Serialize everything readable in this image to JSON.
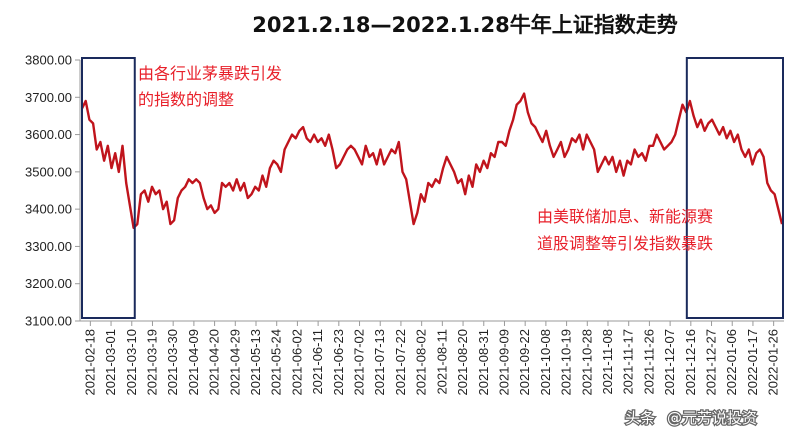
{
  "chart_data": {
    "type": "line",
    "title": "2021.2.18—2022.1.28牛年上证指数走势",
    "xlabel": "",
    "ylabel": "",
    "ylim": [
      3100,
      3800
    ],
    "yticks": [
      "3100.00",
      "3200.00",
      "3300.00",
      "3400.00",
      "3500.00",
      "3600.00",
      "3700.00",
      "3800.00"
    ],
    "xticks": [
      "2021-02-18",
      "2021-03-01",
      "2021-03-10",
      "2021-03-19",
      "2021-03-30",
      "2021-04-09",
      "2021-04-20",
      "2021-04-29",
      "2021-05-13",
      "2021-05-24",
      "2021-06-02",
      "2021-06-11",
      "2021-06-23",
      "2021-07-02",
      "2021-07-13",
      "2021-07-22",
      "2021-08-02",
      "2021-08-11",
      "2021-08-20",
      "2021-08-31",
      "2021-09-09",
      "2021-09-22",
      "2021-10-08",
      "2021-10-19",
      "2021-10-28",
      "2021-11-08",
      "2021-11-17",
      "2021-11-26",
      "2021-12-07",
      "2021-12-16",
      "2021-12-27",
      "2022-01-06",
      "2022-01-17",
      "2022-01-26"
    ],
    "line_color": "#c0141c",
    "series": [
      {
        "values": [
          3670,
          3690,
          3640,
          3630,
          3560,
          3580,
          3530,
          3570,
          3510,
          3550,
          3500,
          3570,
          3470,
          3410,
          3350,
          3360,
          3440,
          3450,
          3420,
          3460,
          3440,
          3450,
          3400,
          3420,
          3360,
          3370,
          3430,
          3450,
          3460,
          3480,
          3470,
          3480,
          3470,
          3430,
          3400,
          3410,
          3390,
          3400,
          3470,
          3460,
          3470,
          3450,
          3480,
          3450,
          3470,
          3430,
          3440,
          3460,
          3450,
          3490,
          3460,
          3510,
          3530,
          3520,
          3500,
          3560,
          3580,
          3600,
          3590,
          3610,
          3620,
          3590,
          3580,
          3600,
          3580,
          3590,
          3570,
          3600,
          3560,
          3510,
          3520,
          3540,
          3560,
          3570,
          3560,
          3540,
          3520,
          3570,
          3540,
          3550,
          3520,
          3560,
          3520,
          3540,
          3560,
          3550,
          3580,
          3500,
          3480,
          3420,
          3360,
          3390,
          3440,
          3420,
          3470,
          3460,
          3480,
          3470,
          3510,
          3540,
          3520,
          3500,
          3470,
          3480,
          3440,
          3490,
          3460,
          3520,
          3500,
          3530,
          3510,
          3550,
          3540,
          3580,
          3580,
          3570,
          3610,
          3640,
          3680,
          3690,
          3710,
          3660,
          3630,
          3620,
          3600,
          3580,
          3610,
          3570,
          3540,
          3560,
          3580,
          3540,
          3560,
          3590,
          3580,
          3600,
          3560,
          3600,
          3580,
          3560,
          3500,
          3520,
          3540,
          3520,
          3540,
          3500,
          3530,
          3490,
          3530,
          3520,
          3560,
          3540,
          3550,
          3530,
          3570,
          3570,
          3600,
          3580,
          3560,
          3570,
          3580,
          3600,
          3640,
          3680,
          3660,
          3690,
          3650,
          3620,
          3640,
          3610,
          3630,
          3640,
          3620,
          3600,
          3620,
          3590,
          3610,
          3580,
          3600,
          3560,
          3540,
          3560,
          3520,
          3550,
          3560,
          3540,
          3470,
          3450,
          3440,
          3400,
          3360
        ]
      }
    ],
    "annotations": [
      {
        "id": "left",
        "lines": [
          "由各行业茅暴跌引发",
          "的指数的调整"
        ]
      },
      {
        "id": "right",
        "lines": [
          "由美联储加息、新能源赛",
          "道股调整等引发指数暴跌"
        ]
      }
    ],
    "highlight_boxes": [
      {
        "id": "left",
        "from": "2021-02-18",
        "to": "2021-03-10"
      },
      {
        "id": "right",
        "from": "2021-12-16",
        "to": "2022-01-28"
      }
    ]
  },
  "watermark": {
    "prefix": "头条",
    "handle": "@元芳说投资"
  }
}
